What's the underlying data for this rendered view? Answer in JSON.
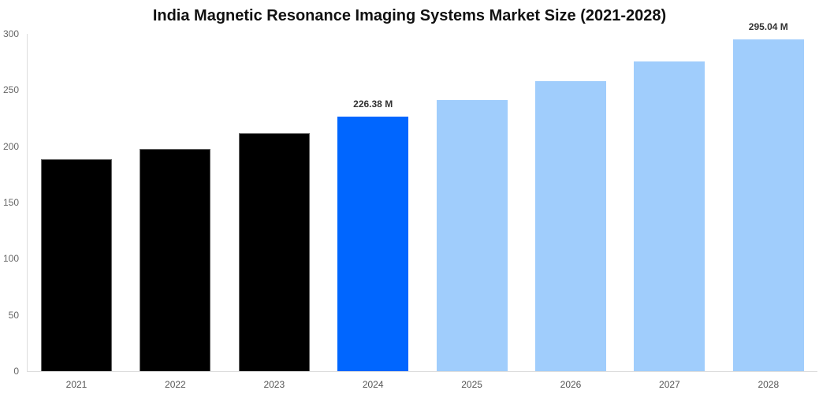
{
  "chart": {
    "title": "India Magnetic Resonance Imaging Systems Market Size (2021-2028)",
    "y_ticks": [
      "0",
      "50",
      "100",
      "150",
      "200",
      "250",
      "300"
    ],
    "bar_labels": {
      "2024": "226.38 M",
      "2028": "295.04 M"
    }
  },
  "colors": {
    "historical": "#000000",
    "current": "#0066ff",
    "forecast": "#a0cdfc"
  },
  "chart_data": {
    "type": "bar",
    "title": "India Magnetic Resonance Imaging Systems Market Size (2021-2028)",
    "xlabel": "",
    "ylabel": "",
    "categories": [
      "2021",
      "2022",
      "2023",
      "2024",
      "2025",
      "2026",
      "2027",
      "2028"
    ],
    "values": [
      188.6,
      197.7,
      211.7,
      226.38,
      241.1,
      257.9,
      275.5,
      295.04
    ],
    "series_roles": [
      "historical",
      "historical",
      "historical",
      "current",
      "forecast",
      "forecast",
      "forecast",
      "forecast"
    ],
    "data_labels": {
      "2024": "226.38 M",
      "2028": "295.04 M"
    },
    "ylim": [
      0,
      300
    ],
    "y_ticks": [
      0,
      50,
      100,
      150,
      200,
      250,
      300
    ],
    "grid": false,
    "legend": "none",
    "unit": "M"
  }
}
